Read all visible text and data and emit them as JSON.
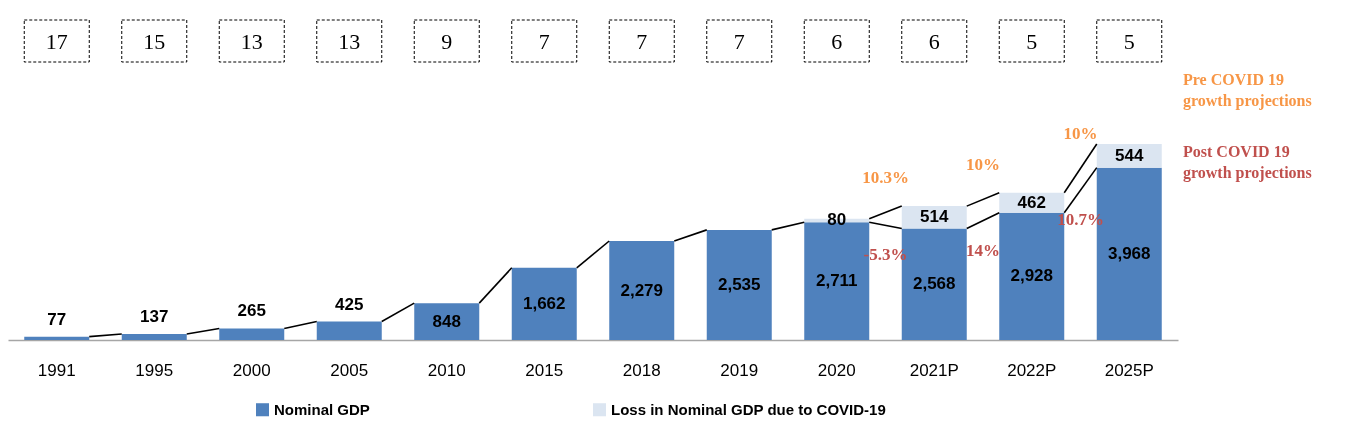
{
  "chart_data": {
    "type": "bar",
    "stacked": true,
    "categories": [
      "1991",
      "1995",
      "2000",
      "2005",
      "2010",
      "2015",
      "2018",
      "2019",
      "2020",
      "2021P",
      "2022P",
      "2025P"
    ],
    "series": [
      {
        "name": "Nominal GDP",
        "color": "#4f81bd",
        "values": [
          77,
          137,
          265,
          425,
          848,
          1662,
          2279,
          2535,
          2711,
          2568,
          2928,
          3968
        ],
        "value_labels": [
          "77",
          "137",
          "265",
          "425",
          "848",
          "1,662",
          "2,279",
          "2,535",
          "2,711",
          "2,568",
          "2,928",
          "3,968"
        ]
      },
      {
        "name": "Loss in Nominal GDP due to COVID-19",
        "color": "#dbe5f1",
        "values": [
          null,
          null,
          null,
          null,
          null,
          null,
          null,
          null,
          80,
          514,
          462,
          544
        ],
        "value_labels": [
          null,
          null,
          null,
          null,
          null,
          null,
          null,
          null,
          "80",
          "514",
          "462",
          "544"
        ]
      }
    ],
    "legend": "bottom",
    "annotations": [
      "17",
      "15",
      "13",
      "13",
      "9",
      "7",
      "7",
      "7",
      "6",
      "6",
      "5",
      "5",
      {
        "text": "10.3%",
        "x": "2021P",
        "y": 3082
      },
      {
        "text": "10%",
        "x": "2022P",
        "y": 3390
      },
      {
        "text": "10%",
        "x": "2025P",
        "y": 4512
      },
      {
        "text": "-5.3%",
        "x": "2021P",
        "y": 2568
      },
      {
        "text": "14%",
        "x": "2022P",
        "y": 2928
      },
      {
        "text": "10.7%",
        "x": "2025P",
        "y": 3968
      },
      "Pre COVID 19 growth projections",
      "Post COVID 19 growth projections"
    ]
  }
}
